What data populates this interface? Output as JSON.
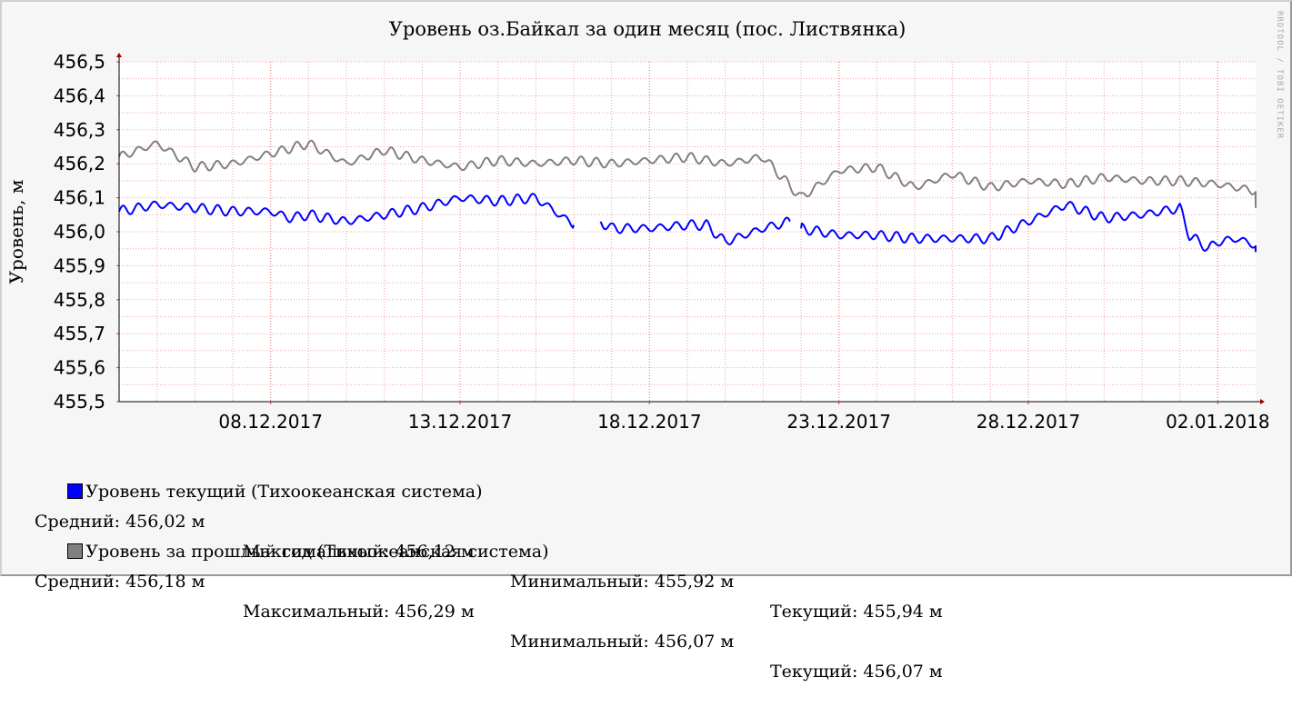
{
  "chart_data": {
    "type": "line",
    "title": "Уровень оз.Байкал за один месяц (пос. Листвянка)",
    "ylabel": "Уровень, м",
    "watermark": "RRDTOOL / TOBI OETIKER",
    "ylim": [
      455.5,
      456.5
    ],
    "yticks": [
      "456,5",
      "456,4",
      "456,3",
      "456,2",
      "456,1",
      "456,0",
      "455,9",
      "455,8",
      "455,7",
      "455,6",
      "455,5"
    ],
    "xlim": [
      "2017-12-04",
      "2018-01-03"
    ],
    "xticks": [
      {
        "date": "2017-12-08",
        "label": "08.12.2017"
      },
      {
        "date": "2017-12-13",
        "label": "13.12.2017"
      },
      {
        "date": "2017-12-18",
        "label": "18.12.2017"
      },
      {
        "date": "2017-12-23",
        "label": "23.12.2017"
      },
      {
        "date": "2017-12-28",
        "label": "28.12.2017"
      },
      {
        "date": "2018-01-02",
        "label": "02.01.2018"
      }
    ],
    "grid": true,
    "series": [
      {
        "name": "Уровень текущий",
        "color": "#0000ff",
        "points": [
          [
            "2017-12-04",
            456.06
          ],
          [
            "2017-12-05",
            456.08
          ],
          [
            "2017-12-06",
            456.07
          ],
          [
            "2017-12-07",
            456.06
          ],
          [
            "2017-12-08",
            456.06
          ],
          [
            "2017-12-08 12:00",
            456.04
          ],
          [
            "2017-12-09",
            456.05
          ],
          [
            "2017-12-10",
            456.03
          ],
          [
            "2017-12-11",
            456.05
          ],
          [
            "2017-12-12",
            456.07
          ],
          [
            "2017-12-13",
            456.1
          ],
          [
            "2017-12-14",
            456.09
          ],
          [
            "2017-12-15",
            456.1
          ],
          [
            "2017-12-15 12:00",
            456.06
          ],
          [
            "2017-12-16",
            456.02
          ],
          null,
          [
            "2017-12-16 17:00",
            456.03
          ],
          [
            "2017-12-17",
            456.01
          ],
          [
            "2017-12-18",
            456.01
          ],
          [
            "2017-12-19",
            456.02
          ],
          [
            "2017-12-19 12:00",
            456.02
          ],
          [
            "2017-12-20",
            455.97
          ],
          [
            "2017-12-21",
            456.01
          ],
          [
            "2017-12-21 17:00",
            456.03
          ],
          null,
          [
            "2017-12-22",
            456.01
          ],
          [
            "2017-12-23",
            455.99
          ],
          [
            "2017-12-24",
            455.99
          ],
          [
            "2017-12-25",
            455.98
          ],
          [
            "2017-12-26",
            455.98
          ],
          [
            "2017-12-27",
            455.98
          ],
          [
            "2017-12-28",
            456.03
          ],
          [
            "2017-12-29",
            456.08
          ],
          [
            "2017-12-30",
            456.04
          ],
          [
            "2017-12-31",
            456.05
          ],
          [
            "2018-01-01",
            456.07
          ],
          [
            "2018-01-01 06:00",
            455.99
          ],
          [
            "2018-01-01 18:00",
            455.95
          ],
          [
            "2018-01-02",
            455.97
          ],
          [
            "2018-01-02 12:00",
            455.98
          ],
          [
            "2018-01-03",
            455.96
          ],
          [
            "2018-01-03",
            455.94
          ]
        ]
      },
      {
        "name": "Уровень за прошлый год",
        "color": "#808080",
        "points": [
          [
            "2017-12-04",
            456.22
          ],
          [
            "2017-12-05",
            456.26
          ],
          [
            "2017-12-06",
            456.19
          ],
          [
            "2017-12-07",
            456.2
          ],
          [
            "2017-12-08",
            456.23
          ],
          [
            "2017-12-09",
            456.26
          ],
          [
            "2017-12-10",
            456.2
          ],
          [
            "2017-12-11",
            456.24
          ],
          [
            "2017-12-12",
            456.21
          ],
          [
            "2017-12-13",
            456.19
          ],
          [
            "2017-12-14",
            456.21
          ],
          [
            "2017-12-15",
            456.2
          ],
          [
            "2017-12-16",
            456.21
          ],
          [
            "2017-12-17",
            456.2
          ],
          [
            "2017-12-18",
            456.21
          ],
          [
            "2017-12-19",
            456.22
          ],
          [
            "2017-12-20",
            456.2
          ],
          [
            "2017-12-21",
            456.22
          ],
          [
            "2017-12-22",
            456.1
          ],
          [
            "2017-12-23",
            456.18
          ],
          [
            "2017-12-24",
            456.19
          ],
          [
            "2017-12-25",
            456.13
          ],
          [
            "2017-12-26",
            456.17
          ],
          [
            "2017-12-27",
            456.13
          ],
          [
            "2017-12-28",
            456.15
          ],
          [
            "2017-12-29",
            456.14
          ],
          [
            "2017-12-30",
            456.16
          ],
          [
            "2017-12-31",
            456.15
          ],
          [
            "2018-01-01",
            456.15
          ],
          [
            "2018-01-02",
            456.14
          ],
          [
            "2018-01-03",
            456.12
          ],
          [
            "2018-01-03",
            456.07
          ]
        ]
      }
    ]
  },
  "legend": [
    {
      "label": "Уровень текущий",
      "system": "(Тихоокеанская система)",
      "color": "#0000ff",
      "stats": [
        "Средний: 456,02 м",
        "Максимальный: 456,12 м",
        "Минимальный: 455,92 м",
        "Текущий: 455,94 м"
      ]
    },
    {
      "label": "Уровень за прошлый год",
      "system": "(Тихоокеанская система)",
      "color": "#808080",
      "stats": [
        "Средний: 456,18 м",
        "Максимальный: 456,29 м",
        "Минимальный: 456,07 м",
        "Текущий: 456,07 м"
      ]
    }
  ]
}
